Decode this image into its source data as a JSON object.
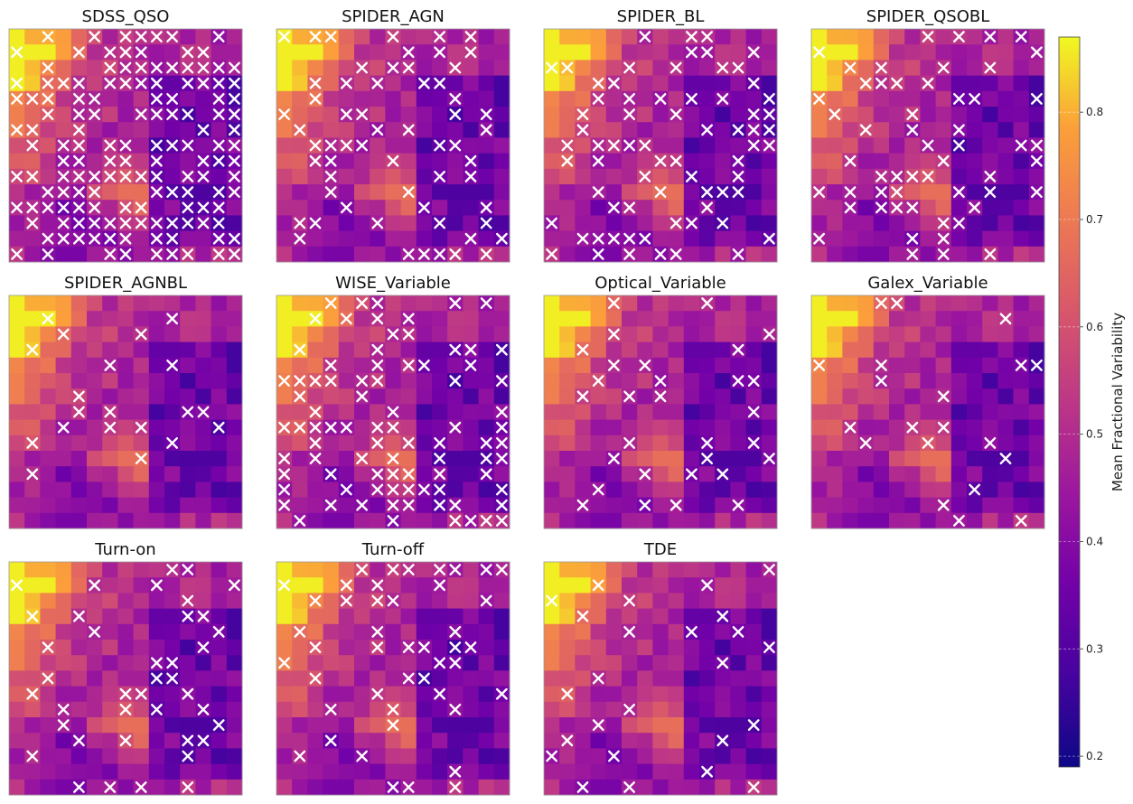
{
  "chart_data": {
    "type": "heatmap",
    "grid": {
      "rows": 15,
      "cols": 15
    },
    "panels": [
      {
        "title": "SDSS_QSO",
        "marked_cells": 140
      },
      {
        "title": "SPIDER_AGN",
        "marked_cells": 60
      },
      {
        "title": "SPIDER_BL",
        "marked_cells": 70
      },
      {
        "title": "SPIDER_QSOBL",
        "marked_cells": 55
      },
      {
        "title": "SPIDER_AGNBL",
        "marked_cells": 20
      },
      {
        "title": "WISE_Variable",
        "marked_cells": 85
      },
      {
        "title": "Optical_Variable",
        "marked_cells": 30
      },
      {
        "title": "Galex_Variable",
        "marked_cells": 20
      },
      {
        "title": "Turn-on",
        "marked_cells": 40
      },
      {
        "title": "Turn-off",
        "marked_cells": 45
      },
      {
        "title": "TDE",
        "marked_cells": 25
      }
    ],
    "colorbar": {
      "label": "Mean Fractional Variability",
      "colormap": "plasma",
      "min": 0.19,
      "max": 0.87,
      "ticks": [
        {
          "value": 0.2,
          "label": "0.2"
        },
        {
          "value": 0.3,
          "label": "0.3"
        },
        {
          "value": 0.4,
          "label": "0.4"
        },
        {
          "value": 0.5,
          "label": "0.5"
        },
        {
          "value": 0.6,
          "label": "0.6"
        },
        {
          "value": 0.7,
          "label": "0.7"
        },
        {
          "value": 0.8,
          "label": "0.8"
        }
      ]
    },
    "marker": {
      "symbol": "x",
      "color": "#ffffff"
    }
  }
}
